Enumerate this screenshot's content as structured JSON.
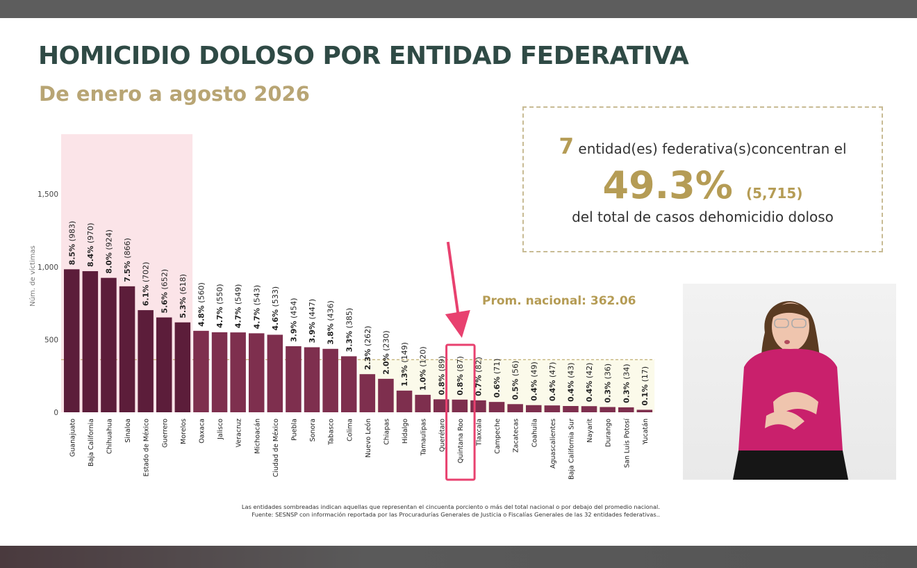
{
  "header": {
    "title": "HOMICIDIO DOLOSO POR ENTIDAD FEDERATIVA",
    "subtitle": "De enero a agosto 2026"
  },
  "callout": {
    "count_entities": "7",
    "line1_text": "entidad(es) federativa(s)concentran el",
    "percent": "49.3%",
    "cases": "(5,715)",
    "line3_text": "del total de casos dehomicidio doloso"
  },
  "footnote": {
    "line1": "Las entidades sombreadas indican aquellas que representan el cincuenta porciento o más del total nacional o por debajo del promedio nacional.",
    "line2": "Fuente: SESNSP con información reportada por las Procuradurías Generales de Justicia o Fiscalías Generales de las 32 entidades federativas.."
  },
  "colors": {
    "title": "#2f4a45",
    "gold": "#b59c55",
    "bar_top": "#5c1d3a",
    "bar_rest": "#7e2f4e",
    "highlight_pink": "#fbe4e8",
    "below_avg_fill": "#fbfaea",
    "arrow": "#e8416f"
  },
  "signer_icon": "sign-language-interpreter-icon",
  "chart_data": {
    "type": "bar",
    "ylabel": "Núm. de víctimas",
    "yticks": [
      0,
      500,
      1000,
      1500
    ],
    "ytick_labels": [
      "0",
      "500",
      "1,000",
      "1,500"
    ],
    "ylim": [
      0,
      1950
    ],
    "average": 362.06,
    "average_label": "Prom. nacional: 362.06",
    "top_group_size": 7,
    "highlighted_category": "Quintana Roo",
    "categories": [
      "Guanajuato",
      "Baja California",
      "Chihuahua",
      "Sinaloa",
      "Estado de México",
      "Guerrero",
      "Morelos",
      "Oaxaca",
      "Jalisco",
      "Veracruz",
      "Michoacán",
      "Ciudad de México",
      "Puebla",
      "Sonora",
      "Tabasco",
      "Colima",
      "Nuevo León",
      "Chiapas",
      "Hidalgo",
      "Tamaulipas",
      "Querétaro",
      "Quintana Roo",
      "Tlaxcala",
      "Campeche",
      "Zacatecas",
      "Coahuila",
      "Aguascalientes",
      "Baja California Sur",
      "Nayarit",
      "Durango",
      "San Luis Potosí",
      "Yucatán"
    ],
    "values": [
      983,
      970,
      924,
      866,
      702,
      652,
      618,
      560,
      550,
      549,
      543,
      533,
      454,
      447,
      436,
      385,
      262,
      230,
      149,
      120,
      89,
      87,
      82,
      71,
      56,
      49,
      47,
      43,
      42,
      36,
      34,
      17
    ],
    "percent_labels": [
      "8.5%",
      "8.4%",
      "8.0%",
      "7.5%",
      "6.1%",
      "5.6%",
      "5.3%",
      "4.8%",
      "4.7%",
      "4.7%",
      "4.7%",
      "4.6%",
      "3.9%",
      "3.9%",
      "3.8%",
      "3.3%",
      "2.3%",
      "2.0%",
      "1.3%",
      "1.0%",
      "0.8%",
      "0.8%",
      "0.7%",
      "0.6%",
      "0.5%",
      "0.4%",
      "0.4%",
      "0.4%",
      "0.4%",
      "0.3%",
      "0.3%",
      "0.1%"
    ],
    "count_labels": [
      "(983)",
      "(970)",
      "(924)",
      "(866)",
      "(702)",
      "(652)",
      "(618)",
      "(560)",
      "(550)",
      "(549)",
      "(543)",
      "(533)",
      "(454)",
      "(447)",
      "(436)",
      "(385)",
      "(262)",
      "(230)",
      "(149)",
      "(120)",
      "(89)",
      "(87)",
      "(82)",
      "(71)",
      "(56)",
      "(49)",
      "(47)",
      "(43)",
      "(42)",
      "(36)",
      "(34)",
      "(17)"
    ]
  }
}
